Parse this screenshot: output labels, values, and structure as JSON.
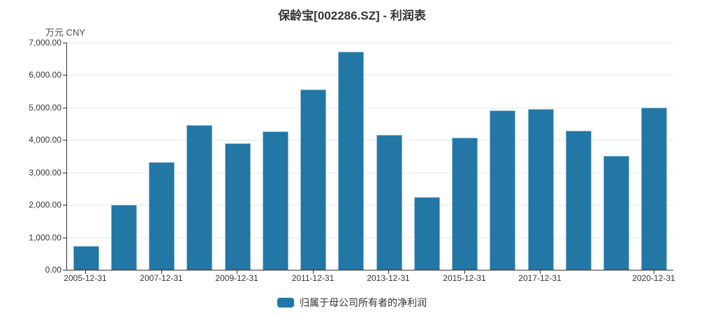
{
  "chart": {
    "title": "保龄宝[002286.SZ] - 利润表",
    "unit_label": "万元 CNY",
    "colors": {
      "bar_fill": "#2277a5",
      "bar_border": "#8fbcd4",
      "grid": "#e6e6e6",
      "axis": "#333333",
      "label": "#333333"
    }
  },
  "chart_data": {
    "type": "bar",
    "title": "保龄宝[002286.SZ] - 利润表",
    "unit": "万元 CNY",
    "xlabel": "",
    "ylabel": "万元 CNY",
    "categories": [
      "2005-12-31",
      "2006-12-31",
      "2007-12-31",
      "2008-12-31",
      "2009-12-31",
      "2010-12-31",
      "2011-12-31",
      "2012-12-31",
      "2013-12-31",
      "2014-12-31",
      "2015-12-31",
      "2016-12-31",
      "2017-12-31",
      "2018-12-31",
      "2019-12-31",
      "2020-12-31"
    ],
    "series": [
      {
        "name": "归属于母公司所有者的净利润",
        "values": [
          730,
          2000,
          3320,
          4460,
          3900,
          4260,
          5550,
          6720,
          4160,
          2230,
          4060,
          4910,
          4960,
          4280,
          3500,
          4990
        ]
      }
    ],
    "ylim": [
      0,
      7000
    ],
    "ytick_step": 1000,
    "visible_xtick_indices": [
      0,
      2,
      4,
      6,
      8,
      10,
      12,
      15
    ],
    "grid": true,
    "legend_position": "bottom"
  }
}
